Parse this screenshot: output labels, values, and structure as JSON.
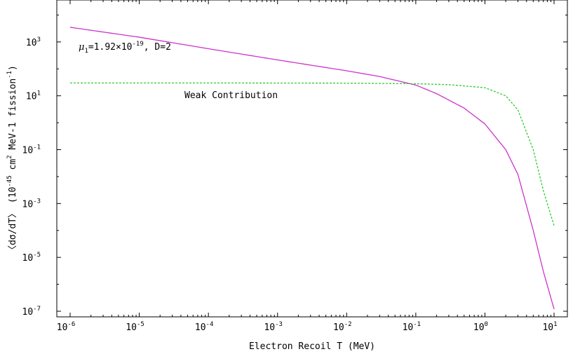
{
  "chart_data": {
    "type": "line",
    "title": "",
    "xlabel": "Electron Recoil T (MeV)",
    "ylabel": "<dσ/dT> (10^-45 cm^2 MeV^-1 fission^-1)",
    "ylabel_parts": {
      "a": "〈dσ/dT〉 (10",
      "a_sup": "-45",
      "b": " cm",
      "b_sup": "2",
      "c": " MeV-1 fission",
      "c_sup": "-1",
      "d": ")"
    },
    "xscale": "log",
    "yscale": "log",
    "xlim": [
      1e-06,
      10
    ],
    "ylim": [
      1e-07,
      100000.0
    ],
    "grid": false,
    "x_ticks": [
      {
        "value": 1e-06,
        "base": "10",
        "exp": "-6"
      },
      {
        "value": 1e-05,
        "base": "10",
        "exp": "-5"
      },
      {
        "value": 0.0001,
        "base": "10",
        "exp": "-4"
      },
      {
        "value": 0.001,
        "base": "10",
        "exp": "-3"
      },
      {
        "value": 0.01,
        "base": "10",
        "exp": "-2"
      },
      {
        "value": 0.1,
        "base": "10",
        "exp": "-1"
      },
      {
        "value": 1,
        "base": "10",
        "exp": "0"
      },
      {
        "value": 10,
        "base": "10",
        "exp": "1"
      }
    ],
    "y_ticks": [
      {
        "value": 1e-07,
        "base": "10",
        "exp": "-7"
      },
      {
        "value": 1e-05,
        "base": "10",
        "exp": "-5"
      },
      {
        "value": 0.001,
        "base": "10",
        "exp": "-3"
      },
      {
        "value": 0.1,
        "base": "10",
        "exp": "-1"
      },
      {
        "value": 10,
        "base": "10",
        "exp": "1"
      },
      {
        "value": 1000,
        "base": "10",
        "exp": "3"
      }
    ],
    "series": [
      {
        "name": "",
        "color": "#cc33cc",
        "dash": "solid",
        "points": [
          [
            1e-06,
            3500
          ],
          [
            1e-05,
            1500
          ],
          [
            0.0001,
            560
          ],
          [
            0.001,
            215
          ],
          [
            0.01,
            85
          ],
          [
            0.03,
            52
          ],
          [
            0.1,
            25
          ],
          [
            0.2,
            12
          ],
          [
            0.5,
            3.5
          ],
          [
            1,
            0.9
          ],
          [
            2,
            0.1
          ],
          [
            3,
            0.012
          ],
          [
            5,
            0.0001
          ],
          [
            7,
            3e-06
          ],
          [
            10,
            1.2e-07
          ]
        ]
      },
      {
        "name": "Weak Contribution",
        "color": "#33cc33",
        "dash": "dashed",
        "points": [
          [
            1e-06,
            30
          ],
          [
            0.0001,
            30
          ],
          [
            0.01,
            29.5
          ],
          [
            0.1,
            28
          ],
          [
            0.3,
            26
          ],
          [
            1,
            20
          ],
          [
            2,
            10
          ],
          [
            3,
            3
          ],
          [
            5,
            0.1
          ],
          [
            7,
            0.003
          ],
          [
            10,
            0.00015
          ]
        ]
      }
    ],
    "annotations": {
      "mu_label": {
        "mu": "μ",
        "sub": "1",
        "mid": "=1.92×10",
        "exp": "-19",
        "tail": ", D=2"
      },
      "weak_label": "Weak Contribution"
    }
  }
}
